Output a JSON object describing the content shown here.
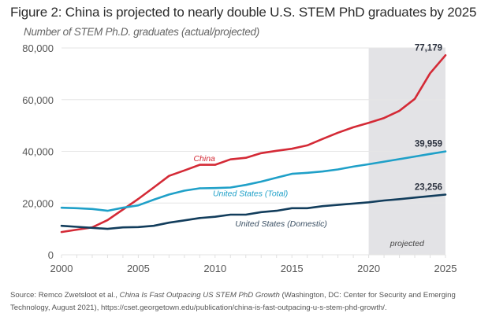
{
  "header": {
    "title": "Figure 2: China is projected to nearly double U.S. STEM PhD graduates by 2025",
    "subtitle": "Number of STEM Ph.D. graduates (actual/projected)"
  },
  "source": {
    "prefix": "Source: Remco Zwetsloot et al., ",
    "italic_title": "China Is Fast Outpacing US STEM PhD Growth",
    "suffix": " (Washington, DC: Center for Security and Emerging Technology, August 2021), https://cset.georgetown.edu/publication/china-is-fast-outpacing-u-s-stem-phd-growth/."
  },
  "chart_data": {
    "type": "line",
    "title": "Figure 2: China is projected to nearly double U.S. STEM PhD graduates by 2025",
    "ylabel": "Number of STEM Ph.D. graduates (actual/projected)",
    "xlabel": "",
    "x": [
      2000,
      2001,
      2002,
      2003,
      2004,
      2005,
      2006,
      2007,
      2008,
      2009,
      2010,
      2011,
      2012,
      2013,
      2014,
      2015,
      2016,
      2017,
      2018,
      2019,
      2020,
      2021,
      2022,
      2023,
      2024,
      2025
    ],
    "xlim": [
      2000,
      2025
    ],
    "ylim": [
      0,
      80000
    ],
    "x_ticks": [
      "2000",
      "2005",
      "2010",
      "2015",
      "2020",
      "2025"
    ],
    "y_ticks": [
      "0",
      "20,000",
      "40,000",
      "60,000",
      "80,000"
    ],
    "grid": "horizontal",
    "shaded_region": {
      "from": 2020,
      "to": 2025,
      "label": "projected",
      "color": "#e3e3e6"
    },
    "series": [
      {
        "name": "China",
        "color": "#d42a36",
        "end_label": "77,179",
        "values": [
          8800,
          9700,
          10600,
          13400,
          17500,
          21600,
          26000,
          30500,
          32600,
          34800,
          34800,
          36900,
          37500,
          39300,
          40200,
          41000,
          42300,
          44800,
          47200,
          49300,
          51000,
          52900,
          55700,
          60300,
          70200,
          77179
        ]
      },
      {
        "name": "United States (Total)",
        "color": "#1fa0c8",
        "end_label": "39,959",
        "values": [
          18200,
          18000,
          17700,
          17000,
          18200,
          19100,
          21300,
          23300,
          24800,
          25700,
          25800,
          26000,
          27000,
          28300,
          29800,
          31300,
          31700,
          32200,
          33000,
          34100,
          35000,
          36000,
          37000,
          38000,
          39000,
          39959
        ]
      },
      {
        "name": "United States (Domestic)",
        "color": "#123d5c",
        "end_label": "23,256",
        "values": [
          11200,
          10800,
          10400,
          10000,
          10600,
          10700,
          11200,
          12400,
          13300,
          14200,
          14700,
          15500,
          15500,
          16500,
          17000,
          18000,
          18000,
          18800,
          19300,
          19800,
          20300,
          21000,
          21500,
          22100,
          22700,
          23256
        ]
      }
    ],
    "legend": "inline labels"
  }
}
